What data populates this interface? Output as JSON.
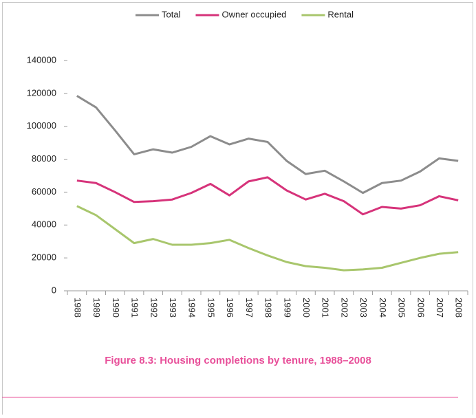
{
  "chart_data": {
    "type": "line",
    "title": "Figure 8.3: Housing completions by tenure, 1988–2008",
    "categories": [
      "1988",
      "1989",
      "1990",
      "1991",
      "1992",
      "1993",
      "1994",
      "1995",
      "1996",
      "1997",
      "1998",
      "1999",
      "2000",
      "2001",
      "2002",
      "2003",
      "2004",
      "2005",
      "2006",
      "2007",
      "2008"
    ],
    "series": [
      {
        "name": "Total",
        "color": "#8c8c8c",
        "values": [
          118500,
          111500,
          97500,
          83000,
          86000,
          84000,
          87500,
          94000,
          89000,
          92500,
          90500,
          79000,
          71000,
          73000,
          66500,
          59500,
          65500,
          67000,
          72500,
          80500,
          79000
        ]
      },
      {
        "name": "Owner occupied",
        "color": "#d6337a",
        "values": [
          67000,
          65500,
          60000,
          54000,
          54500,
          55500,
          59500,
          65000,
          58000,
          66500,
          69000,
          61000,
          55500,
          59000,
          54500,
          46500,
          51000,
          50000,
          52000,
          57500,
          55000
        ]
      },
      {
        "name": "Rental",
        "color": "#a8c66c",
        "values": [
          51500,
          46000,
          37500,
          29000,
          31500,
          28000,
          28000,
          29000,
          31000,
          26000,
          21500,
          17500,
          15000,
          14000,
          12500,
          13000,
          14000,
          17000,
          20000,
          22500,
          23500
        ]
      }
    ],
    "ylim": [
      0,
      140000
    ],
    "yticks": [
      0,
      20000,
      40000,
      60000,
      80000,
      100000,
      120000,
      140000
    ],
    "grid": false,
    "legend": "top"
  }
}
